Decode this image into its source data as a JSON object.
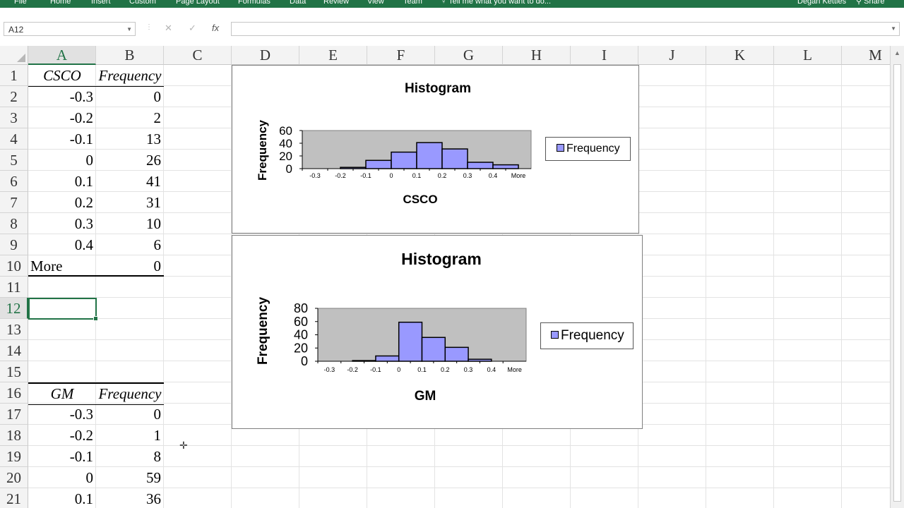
{
  "ribbon": {
    "tabs": [
      "File",
      "Home",
      "Insert",
      "Custom",
      "Page Layout",
      "Formulas",
      "Data",
      "Review",
      "View",
      "Team"
    ],
    "tell_me": "Tell me what you want to do...",
    "user": "Degan Kettles",
    "share": "Share",
    "accent": "#217346"
  },
  "formula_bar": {
    "name_box": "A12",
    "cancel_icon": "✕",
    "enter_icon": "✓",
    "fx_label": "fx",
    "value": ""
  },
  "columns": [
    "A",
    "B",
    "C",
    "D",
    "E",
    "F",
    "G",
    "H",
    "I",
    "J",
    "K",
    "L",
    "M"
  ],
  "selected_column": "A",
  "selected_row": "12",
  "rows": [
    "1",
    "2",
    "3",
    "4",
    "5",
    "6",
    "7",
    "8",
    "9",
    "10",
    "11",
    "12",
    "13",
    "14",
    "15",
    "16",
    "17",
    "18",
    "19",
    "20",
    "21"
  ],
  "table_csco": {
    "header_a": "CSCO",
    "header_b": "Frequency",
    "bins": [
      "-0.3",
      "-0.2",
      "-0.1",
      "0",
      "0.1",
      "0.2",
      "0.3",
      "0.4",
      "More"
    ],
    "freqs": [
      "0",
      "2",
      "13",
      "26",
      "41",
      "31",
      "10",
      "6",
      "0"
    ]
  },
  "table_gm": {
    "header_a": "GM",
    "header_b": "Frequency",
    "bins": [
      "-0.3",
      "-0.2",
      "-0.1",
      "0",
      "0.1"
    ],
    "freqs": [
      "0",
      "1",
      "8",
      "59",
      "36"
    ]
  },
  "chart_data": [
    {
      "type": "bar",
      "title": "Histogram",
      "xlabel": "CSCO",
      "ylabel": "Frequency",
      "categories": [
        "-0.3",
        "-0.2",
        "-0.1",
        "0",
        "0.1",
        "0.2",
        "0.3",
        "0.4",
        "More"
      ],
      "series": [
        {
          "name": "Frequency",
          "values": [
            0,
            2,
            13,
            26,
            41,
            31,
            10,
            6,
            0
          ]
        }
      ],
      "ylim": [
        0,
        60
      ],
      "yticks": [
        "60",
        "40",
        "20",
        "0"
      ],
      "legend": "right",
      "bar_color": "#9999ff",
      "plot_bg": "#c0c0c0"
    },
    {
      "type": "bar",
      "title": "Histogram",
      "xlabel": "GM",
      "ylabel": "Frequency",
      "categories": [
        "-0.3",
        "-0.2",
        "-0.1",
        "0",
        "0.1",
        "0.2",
        "0.3",
        "0.4",
        "More"
      ],
      "series": [
        {
          "name": "Frequency",
          "values": [
            0,
            1,
            8,
            59,
            36,
            21,
            3,
            0,
            0
          ]
        }
      ],
      "ylim": [
        0,
        80
      ],
      "yticks": [
        "80",
        "60",
        "40",
        "20",
        "0"
      ],
      "legend": "right",
      "bar_color": "#9999ff",
      "plot_bg": "#c0c0c0"
    }
  ]
}
